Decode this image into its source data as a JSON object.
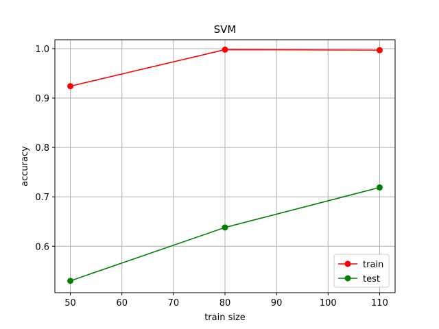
{
  "chart_data": {
    "type": "line",
    "title": "SVM",
    "xlabel": "train size",
    "ylabel": "accuracy",
    "x": [
      50,
      80,
      110
    ],
    "series": [
      {
        "name": "train",
        "color": "#ff0000",
        "values": [
          0.924,
          0.998,
          0.997
        ]
      },
      {
        "name": "test",
        "color": "#008000",
        "values": [
          0.53,
          0.638,
          0.719
        ]
      }
    ],
    "xlim": [
      47,
      113
    ],
    "ylim": [
      0.506,
      1.018
    ],
    "xticks": [
      50,
      60,
      70,
      80,
      90,
      100,
      110
    ],
    "yticks": [
      0.6,
      0.7,
      0.8,
      0.9,
      1.0
    ],
    "ytick_labels": [
      "0.6",
      "0.7",
      "0.8",
      "0.9",
      "1.0"
    ],
    "grid": true,
    "legend_position": "lower-right",
    "marker": "circle"
  }
}
